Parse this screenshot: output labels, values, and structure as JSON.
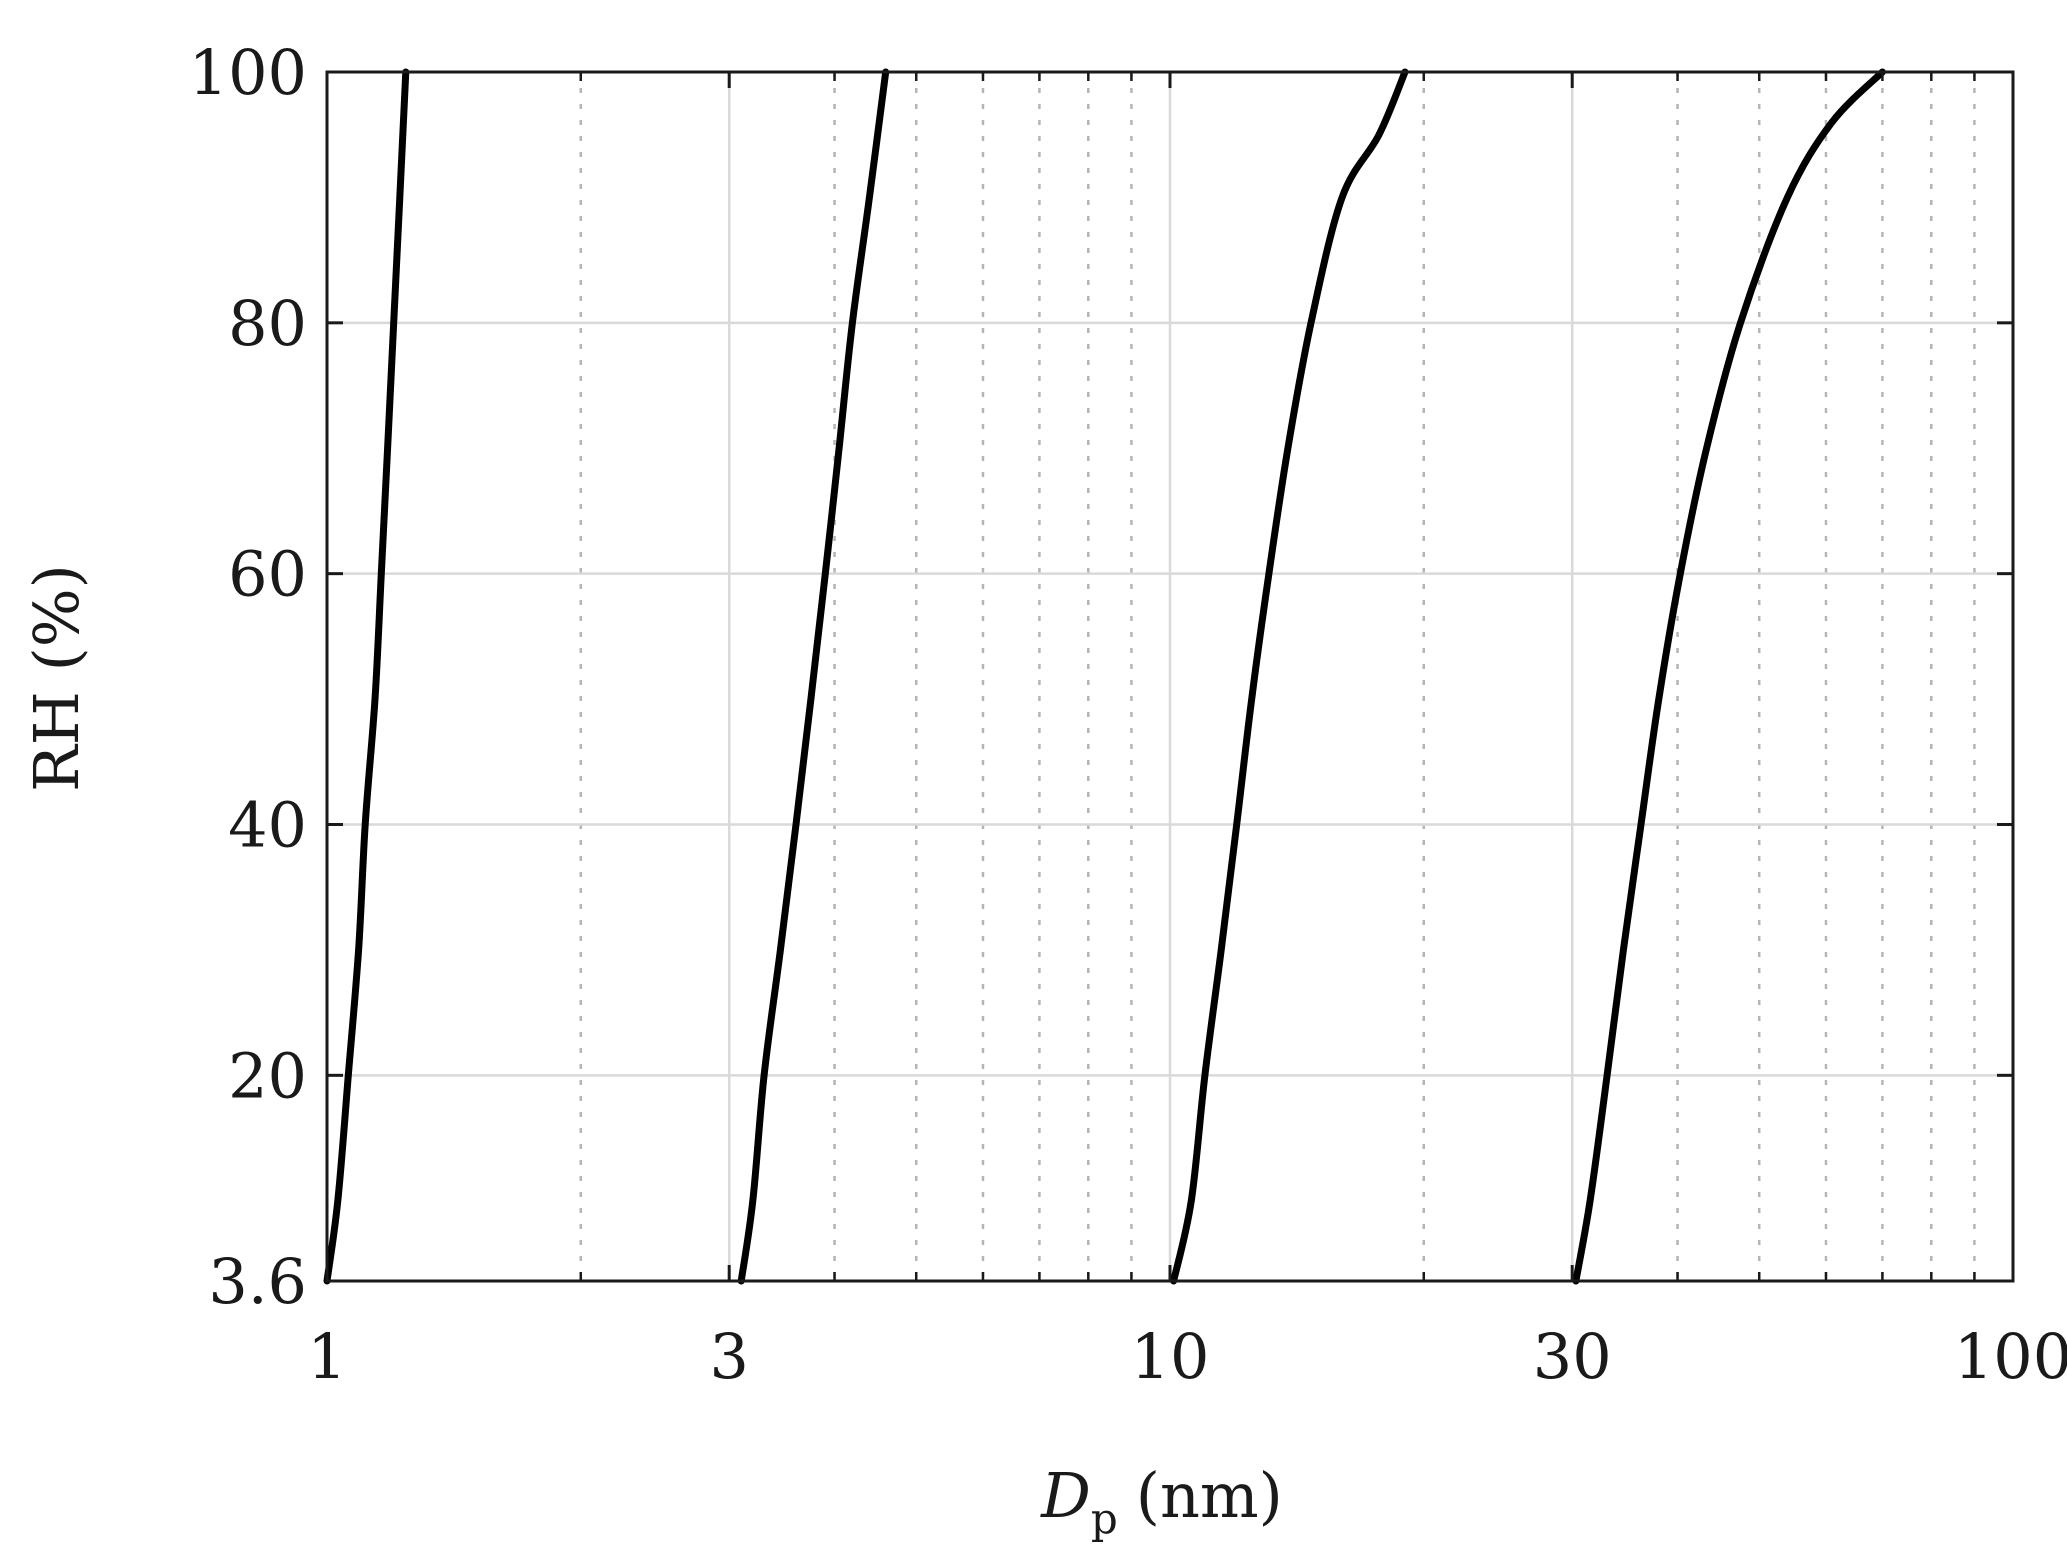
{
  "chart_data": {
    "type": "line",
    "title": "",
    "xlabel_main": "D",
    "xlabel_sub": "p",
    "xlabel_unit": "(nm)",
    "ylabel": "RH (%)",
    "x_scale": "log",
    "xlim": [
      1,
      100
    ],
    "ylim": [
      3.6,
      100
    ],
    "x_ticks": [
      1,
      3,
      10,
      30,
      100
    ],
    "x_tick_labels": [
      "1",
      "3",
      "10",
      "30",
      "100"
    ],
    "y_ticks": [
      3.6,
      20,
      40,
      60,
      80,
      100
    ],
    "y_tick_labels": [
      "3.6",
      "20",
      "40",
      "60",
      "80",
      "100"
    ],
    "grid": true,
    "minor_grid": true,
    "legend": "none",
    "series_color": "#000000",
    "series": [
      {
        "points": [
          [
            1.0,
            3.6
          ],
          [
            1.03,
            10
          ],
          [
            1.06,
            20
          ],
          [
            1.09,
            30
          ],
          [
            1.11,
            40
          ],
          [
            1.14,
            50
          ],
          [
            1.16,
            60
          ],
          [
            1.18,
            70
          ],
          [
            1.2,
            80
          ],
          [
            1.22,
            90
          ],
          [
            1.24,
            100
          ]
        ]
      },
      {
        "points": [
          [
            3.1,
            3.6
          ],
          [
            3.2,
            10
          ],
          [
            3.3,
            20
          ],
          [
            3.45,
            30
          ],
          [
            3.6,
            40
          ],
          [
            3.75,
            50
          ],
          [
            3.9,
            60
          ],
          [
            4.05,
            70
          ],
          [
            4.2,
            80
          ],
          [
            4.4,
            90
          ],
          [
            4.6,
            100
          ]
        ]
      },
      {
        "points": [
          [
            10.1,
            3.6
          ],
          [
            10.6,
            10
          ],
          [
            11.0,
            20
          ],
          [
            11.5,
            30
          ],
          [
            12.0,
            40
          ],
          [
            12.5,
            50
          ],
          [
            13.1,
            60
          ],
          [
            13.8,
            70
          ],
          [
            14.7,
            80
          ],
          [
            16.0,
            90
          ],
          [
            17.7,
            95
          ],
          [
            19.0,
            100
          ]
        ]
      },
      {
        "points": [
          [
            30.3,
            3.6
          ],
          [
            31.5,
            10
          ],
          [
            33.0,
            20
          ],
          [
            34.5,
            30
          ],
          [
            36.2,
            40
          ],
          [
            38.0,
            50
          ],
          [
            40.3,
            60
          ],
          [
            43.3,
            70
          ],
          [
            47.5,
            80
          ],
          [
            54.0,
            90
          ],
          [
            61.0,
            96
          ],
          [
            70.0,
            100
          ]
        ]
      }
    ]
  }
}
